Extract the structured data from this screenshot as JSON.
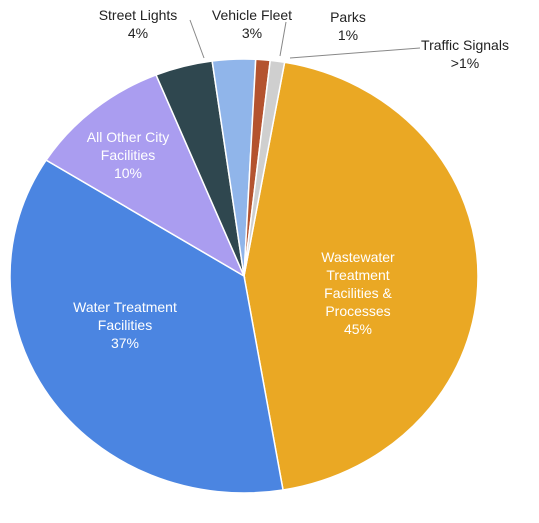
{
  "chart_data": {
    "type": "pie",
    "categories": [
      "Wastewater Treatment Facilities & Processes",
      "Water Treatment Facilities",
      "All Other City Facilities",
      "Street Lights",
      "Vehicle Fleet",
      "Parks",
      "Traffic Signals"
    ],
    "values": [
      45,
      37,
      10,
      4,
      3,
      1,
      1
    ],
    "value_labels": [
      "45%",
      "37%",
      "10%",
      "4%",
      "3%",
      "1%",
      ">1%"
    ],
    "colors": [
      "#eaa824",
      "#4b85e1",
      "#aa9df0",
      "#2f474f",
      "#90b5ea",
      "#b4532f",
      "#cfcfcf"
    ]
  }
}
